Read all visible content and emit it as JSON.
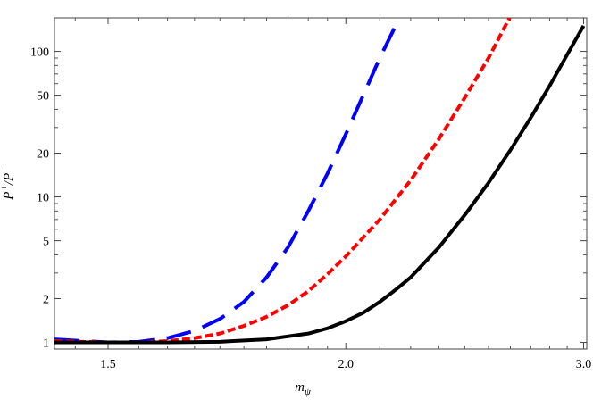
{
  "chart_data": {
    "type": "line",
    "title": "",
    "xlabel_main": "m",
    "xlabel_sub": "ψ",
    "ylabel_main_1": "P",
    "ylabel_sup_1": "+",
    "ylabel_sep": "/",
    "ylabel_main_2": "P",
    "ylabel_sup_2": "−",
    "x_scale": "reciprocal",
    "y_scale": "log",
    "xlim": [
      1.42,
      3.02
    ],
    "ylim": [
      0.9,
      170
    ],
    "x_ticks": [
      {
        "value": 1.5,
        "label": "1.5"
      },
      {
        "value": 2.0,
        "label": "2.0"
      },
      {
        "value": 3.0,
        "label": "3.0"
      }
    ],
    "y_ticks": [
      {
        "value": 1,
        "label": "1"
      },
      {
        "value": 2,
        "label": "2"
      },
      {
        "value": 5,
        "label": "5"
      },
      {
        "value": 10,
        "label": "10"
      },
      {
        "value": 20,
        "label": "20"
      },
      {
        "value": 50,
        "label": "50"
      },
      {
        "value": 100,
        "label": "100"
      }
    ],
    "x_minor_ticks": [
      1.45,
      1.55,
      1.6,
      1.65,
      1.7,
      1.75,
      1.8,
      1.85,
      1.9,
      1.95,
      2.1,
      2.2,
      2.3,
      2.4,
      2.5,
      2.6,
      2.7,
      2.8,
      2.9
    ],
    "y_minor_ticks": [
      3,
      4,
      6,
      7,
      8,
      9,
      30,
      40,
      60,
      70,
      80,
      90
    ],
    "grid": false,
    "series": [
      {
        "color": "#0000ff",
        "style": "long-dash",
        "points": [
          [
            1.42,
            1.05
          ],
          [
            1.5,
            1.0
          ],
          [
            1.55,
            1.01
          ],
          [
            1.6,
            1.07
          ],
          [
            1.65,
            1.2
          ],
          [
            1.7,
            1.45
          ],
          [
            1.75,
            1.9
          ],
          [
            1.8,
            2.8
          ],
          [
            1.85,
            4.5
          ],
          [
            1.9,
            8.0
          ],
          [
            1.95,
            14.5
          ],
          [
            2.0,
            27.0
          ],
          [
            2.05,
            50.0
          ],
          [
            2.1,
            90.0
          ],
          [
            2.15,
            150.0
          ]
        ]
      },
      {
        "color": "#ff0000",
        "style": "short-dash",
        "points": [
          [
            1.42,
            1.02
          ],
          [
            1.5,
            1.0
          ],
          [
            1.55,
            1.0
          ],
          [
            1.6,
            1.02
          ],
          [
            1.65,
            1.07
          ],
          [
            1.7,
            1.15
          ],
          [
            1.75,
            1.3
          ],
          [
            1.8,
            1.5
          ],
          [
            1.85,
            1.8
          ],
          [
            1.9,
            2.25
          ],
          [
            1.95,
            2.95
          ],
          [
            2.0,
            3.9
          ],
          [
            2.1,
            7.0
          ],
          [
            2.2,
            13.0
          ],
          [
            2.3,
            25.0
          ],
          [
            2.4,
            48.0
          ],
          [
            2.5,
            90.0
          ],
          [
            2.6,
            175.0
          ]
        ]
      },
      {
        "color": "#000000",
        "style": "solid",
        "points": [
          [
            1.42,
            1.0
          ],
          [
            1.5,
            1.0
          ],
          [
            1.6,
            1.0
          ],
          [
            1.7,
            1.01
          ],
          [
            1.8,
            1.05
          ],
          [
            1.9,
            1.15
          ],
          [
            1.95,
            1.25
          ],
          [
            2.0,
            1.4
          ],
          [
            2.05,
            1.6
          ],
          [
            2.1,
            1.9
          ],
          [
            2.15,
            2.3
          ],
          [
            2.2,
            2.8
          ],
          [
            2.3,
            4.5
          ],
          [
            2.4,
            7.5
          ],
          [
            2.5,
            12.5
          ],
          [
            2.6,
            21.0
          ],
          [
            2.7,
            35.0
          ],
          [
            2.8,
            58.0
          ],
          [
            2.9,
            95.0
          ],
          [
            3.0,
            150.0
          ]
        ]
      }
    ]
  }
}
